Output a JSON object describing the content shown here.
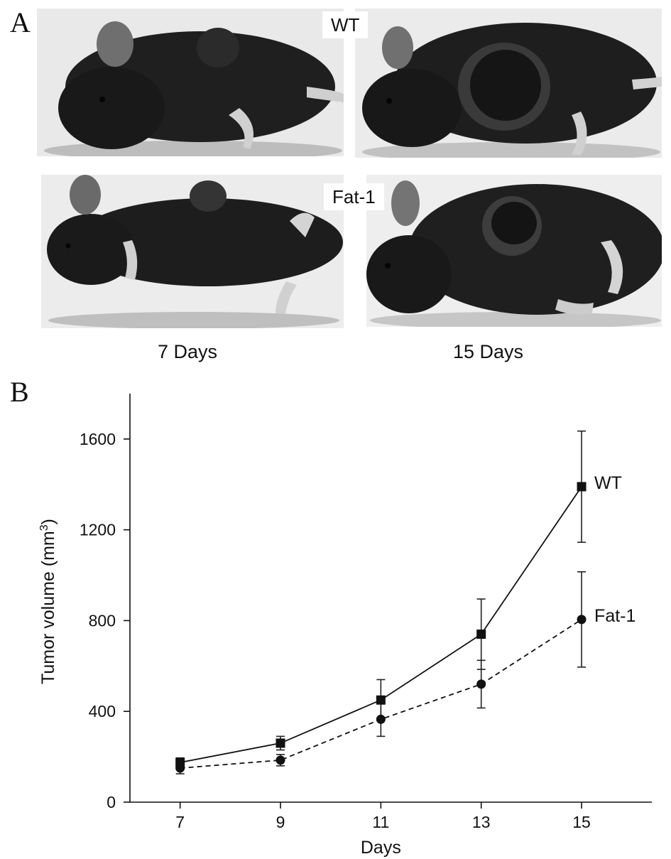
{
  "panel_a": {
    "letter": "A",
    "group_labels": {
      "wt": "WT",
      "fat1": "Fat-1"
    },
    "time_labels": {
      "day7": "7 Days",
      "day15": "15 Days"
    }
  },
  "panel_b": {
    "letter": "B"
  },
  "chart_data": {
    "type": "line",
    "xlabel": "Days",
    "ylabel": "Tumor volume (mm",
    "ylabel_superscript": "3",
    "ylabel_close": ")",
    "x": [
      7,
      9,
      11,
      13,
      15
    ],
    "xlim": [
      6,
      16.4
    ],
    "ylim": [
      0,
      1800
    ],
    "xticks": [
      7,
      9,
      11,
      13,
      15
    ],
    "yticks": [
      0,
      400,
      800,
      1200,
      1600
    ],
    "grid": false,
    "series": [
      {
        "name": "WT",
        "marker": "square",
        "line_style": "solid",
        "values": [
          175,
          260,
          450,
          740,
          1390
        ],
        "error": [
          20,
          30,
          90,
          155,
          245
        ]
      },
      {
        "name": "Fat-1",
        "marker": "circle",
        "line_style": "dashed",
        "values": [
          150,
          185,
          365,
          520,
          805
        ],
        "error": [
          25,
          25,
          75,
          105,
          210
        ]
      }
    ]
  }
}
